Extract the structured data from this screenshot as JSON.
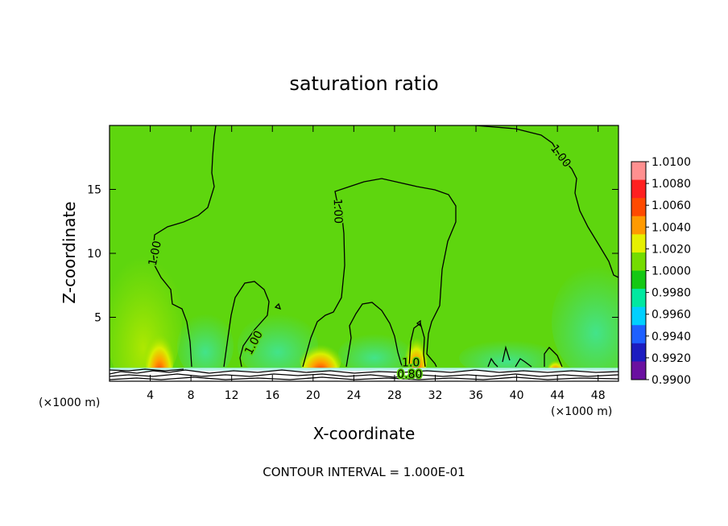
{
  "chart_data": {
    "type": "heatmap",
    "title": "saturation ratio",
    "xlabel": "X-coordinate",
    "ylabel": "Z-coordinate",
    "x_unit_left": "(×1000 m)",
    "x_unit_right": "(×1000 m)",
    "xlim": [
      0,
      50
    ],
    "ylim": [
      0,
      20
    ],
    "xticks": [
      4,
      8,
      12,
      16,
      20,
      24,
      28,
      32,
      36,
      40,
      44,
      48
    ],
    "yticks": [
      5,
      10,
      15
    ],
    "footer": "CONTOUR INTERVAL = 1.000E-01",
    "colorbar": {
      "levels": [
        "1.0100",
        "1.0080",
        "1.0060",
        "1.0040",
        "1.0020",
        "1.0000",
        "0.9980",
        "0.9960",
        "0.9940",
        "0.9920",
        "0.9900"
      ],
      "colors": [
        "#ff9090",
        "#ff2020",
        "#ff4a00",
        "#ff9a00",
        "#e6f000",
        "#74dc00",
        "#14c814",
        "#00e8a0",
        "#00d0ff",
        "#1e60ff",
        "#1c1cc0",
        "#6a10a0"
      ]
    },
    "contour_labels": [
      {
        "text": "1.00",
        "x": 4.5,
        "z": 10.0
      },
      {
        "text": "1.00",
        "x": 14.2,
        "z": 3.0
      },
      {
        "text": "1.00",
        "x": 22.4,
        "z": 13.3
      },
      {
        "text": "1.00",
        "x": 44.3,
        "z": 17.6
      },
      {
        "text": "1.0",
        "x": 29.6,
        "z": 1.4
      },
      {
        "text": "0.80",
        "x": 29.5,
        "z": 0.5
      }
    ]
  }
}
